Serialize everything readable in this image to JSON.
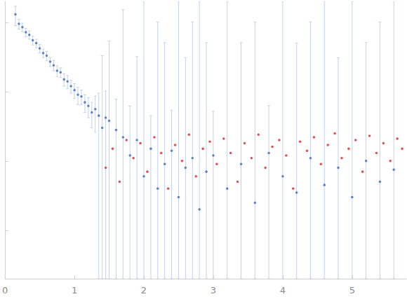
{
  "chart_data": {
    "type": "scatter",
    "log": "y",
    "grid": false,
    "tick_labels": "x",
    "xlim": [
      0,
      5.78
    ],
    "xticks": [
      0,
      1,
      2,
      3,
      4,
      5
    ],
    "ylim": [
      0.0002,
      2
    ],
    "yticks": [
      0.001,
      0.01,
      0.1,
      1
    ],
    "series": [
      {
        "color": "#3a68c0",
        "marker": "circle",
        "x": [
          0.15,
          0.2,
          0.25,
          0.3,
          0.35,
          0.4,
          0.45,
          0.5,
          0.55,
          0.6,
          0.65,
          0.7,
          0.75,
          0.8,
          0.85,
          0.9,
          0.95,
          1.0,
          1.05,
          1.1,
          1.15,
          1.2,
          1.25,
          1.3,
          1.35,
          1.4,
          1.45,
          1.5,
          1.6,
          1.7,
          1.8,
          1.9,
          2.0,
          2.1,
          2.2,
          2.3,
          2.4,
          2.5,
          2.6,
          2.7,
          2.8,
          2.9,
          3.0,
          3.2,
          3.4,
          3.6,
          3.8,
          4.0,
          4.2,
          4.4,
          4.6,
          4.8,
          5.0,
          5.2,
          5.4,
          5.6
        ],
        "values": [
          1.3,
          0.95,
          0.85,
          0.72,
          0.66,
          0.55,
          0.5,
          0.42,
          0.36,
          0.33,
          0.27,
          0.24,
          0.2,
          0.19,
          0.15,
          0.14,
          0.12,
          0.105,
          0.09,
          0.085,
          0.07,
          0.062,
          0.05,
          0.056,
          0.045,
          0.03,
          0.042,
          0.038,
          0.028,
          0.022,
          0.012,
          0.02,
          0.006,
          0.015,
          0.004,
          0.009,
          0.014,
          0.003,
          0.008,
          0.011,
          0.002,
          0.007,
          0.012,
          0.004,
          0.009,
          0.0025,
          0.013,
          0.006,
          0.0035,
          0.011,
          0.0045,
          0.008,
          0.003,
          0.01,
          0.005,
          0.0075
        ],
        "errors": [
          0.4,
          0.15,
          0.12,
          0.1,
          0.09,
          0.08,
          0.07,
          0.06,
          0.05,
          0.05,
          0.04,
          0.04,
          0.035,
          0.03,
          0.03,
          0.03,
          0.025,
          0.025,
          0.025,
          0.02,
          0.02,
          0.02,
          0.02,
          0.03,
          0.05,
          0.3,
          0.06,
          0.5,
          0.05,
          1.5,
          0.05,
          0.3,
          2,
          0.03,
          1,
          0.5,
          0.04,
          2,
          0.3,
          1,
          2,
          0.5,
          0.04,
          2,
          0.5,
          1,
          0.05,
          2,
          0.5,
          1,
          2,
          0.3,
          2,
          0.5,
          1,
          2
        ]
      },
      {
        "color": "#e0242a",
        "marker": "circle",
        "x": [
          1.45,
          1.55,
          1.65,
          1.75,
          1.85,
          1.95,
          2.05,
          2.15,
          2.25,
          2.35,
          2.45,
          2.55,
          2.65,
          2.75,
          2.85,
          2.95,
          3.05,
          3.15,
          3.25,
          3.35,
          3.45,
          3.55,
          3.65,
          3.75,
          3.85,
          3.95,
          4.05,
          4.15,
          4.25,
          4.35,
          4.45,
          4.55,
          4.65,
          4.75,
          4.85,
          4.95,
          5.05,
          5.15,
          5.25,
          5.35,
          5.45,
          5.55,
          5.65,
          5.72
        ],
        "values": [
          0.008,
          0.015,
          0.005,
          0.02,
          0.011,
          0.018,
          0.007,
          0.022,
          0.013,
          0.004,
          0.017,
          0.01,
          0.024,
          0.006,
          0.015,
          0.019,
          0.009,
          0.021,
          0.013,
          0.005,
          0.018,
          0.011,
          0.024,
          0.008,
          0.016,
          0.02,
          0.012,
          0.004,
          0.019,
          0.014,
          0.022,
          0.009,
          0.017,
          0.025,
          0.011,
          0.015,
          0.02,
          0.007,
          0.023,
          0.013,
          0.018,
          0.01,
          0.021,
          0.015
        ]
      }
    ]
  }
}
